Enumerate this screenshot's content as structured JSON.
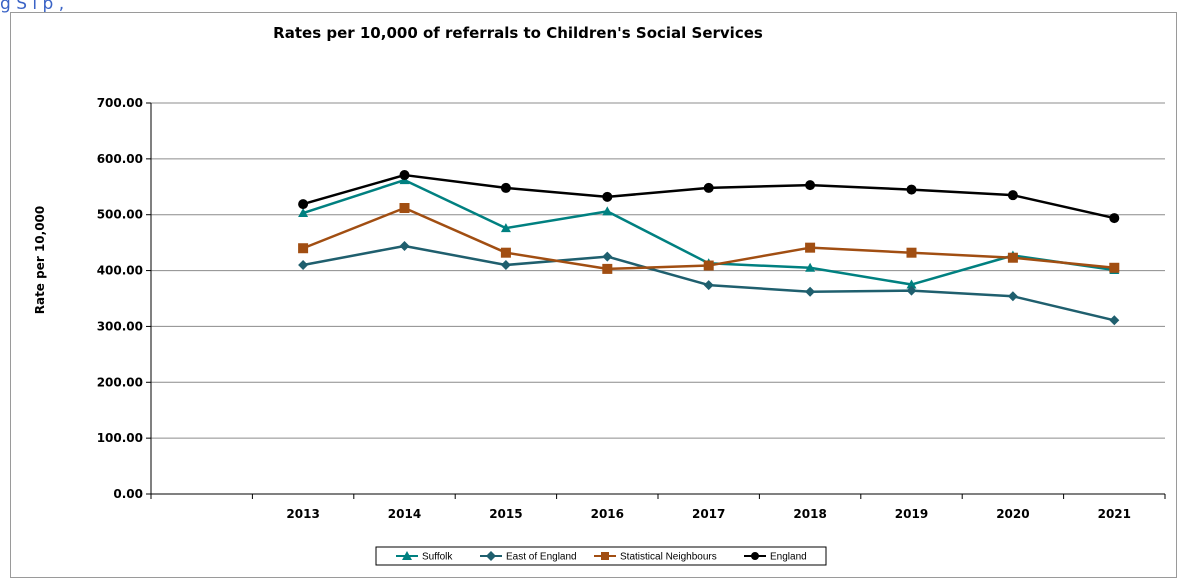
{
  "header_fragment": "g      S     i p  ,",
  "chart_data": {
    "type": "line",
    "title": "Rates per 10,000 of referrals to Children's Social Services",
    "xlabel": "",
    "ylabel": "Rate per 10,000",
    "ylim": [
      0,
      700
    ],
    "yticks": [
      "0.00",
      "100.00",
      "200.00",
      "300.00",
      "400.00",
      "500.00",
      "600.00",
      "700.00"
    ],
    "grid": true,
    "legend_position": "bottom",
    "categories": [
      "",
      "2013",
      "2014",
      "2015",
      "2016",
      "2017",
      "2018",
      "2019",
      "2020",
      "2021"
    ],
    "series": [
      {
        "name": "Suffolk",
        "color": "#008080",
        "marker": "triangle",
        "values": [
          null,
          503,
          562,
          476,
          506,
          413,
          405,
          375,
          427,
          401
        ]
      },
      {
        "name": "East of England",
        "color": "#1f5f6e",
        "marker": "diamond",
        "values": [
          null,
          410,
          444,
          410,
          425,
          374,
          362,
          364,
          354,
          311
        ]
      },
      {
        "name": "Statistical Neighbours",
        "color": "#a14e12",
        "marker": "square",
        "values": [
          null,
          440,
          512,
          432,
          403,
          409,
          441,
          432,
          423,
          405
        ]
      },
      {
        "name": "England",
        "color": "#000000",
        "marker": "circle",
        "values": [
          null,
          519,
          571,
          548,
          532,
          548,
          553,
          545,
          535,
          494
        ]
      }
    ]
  }
}
